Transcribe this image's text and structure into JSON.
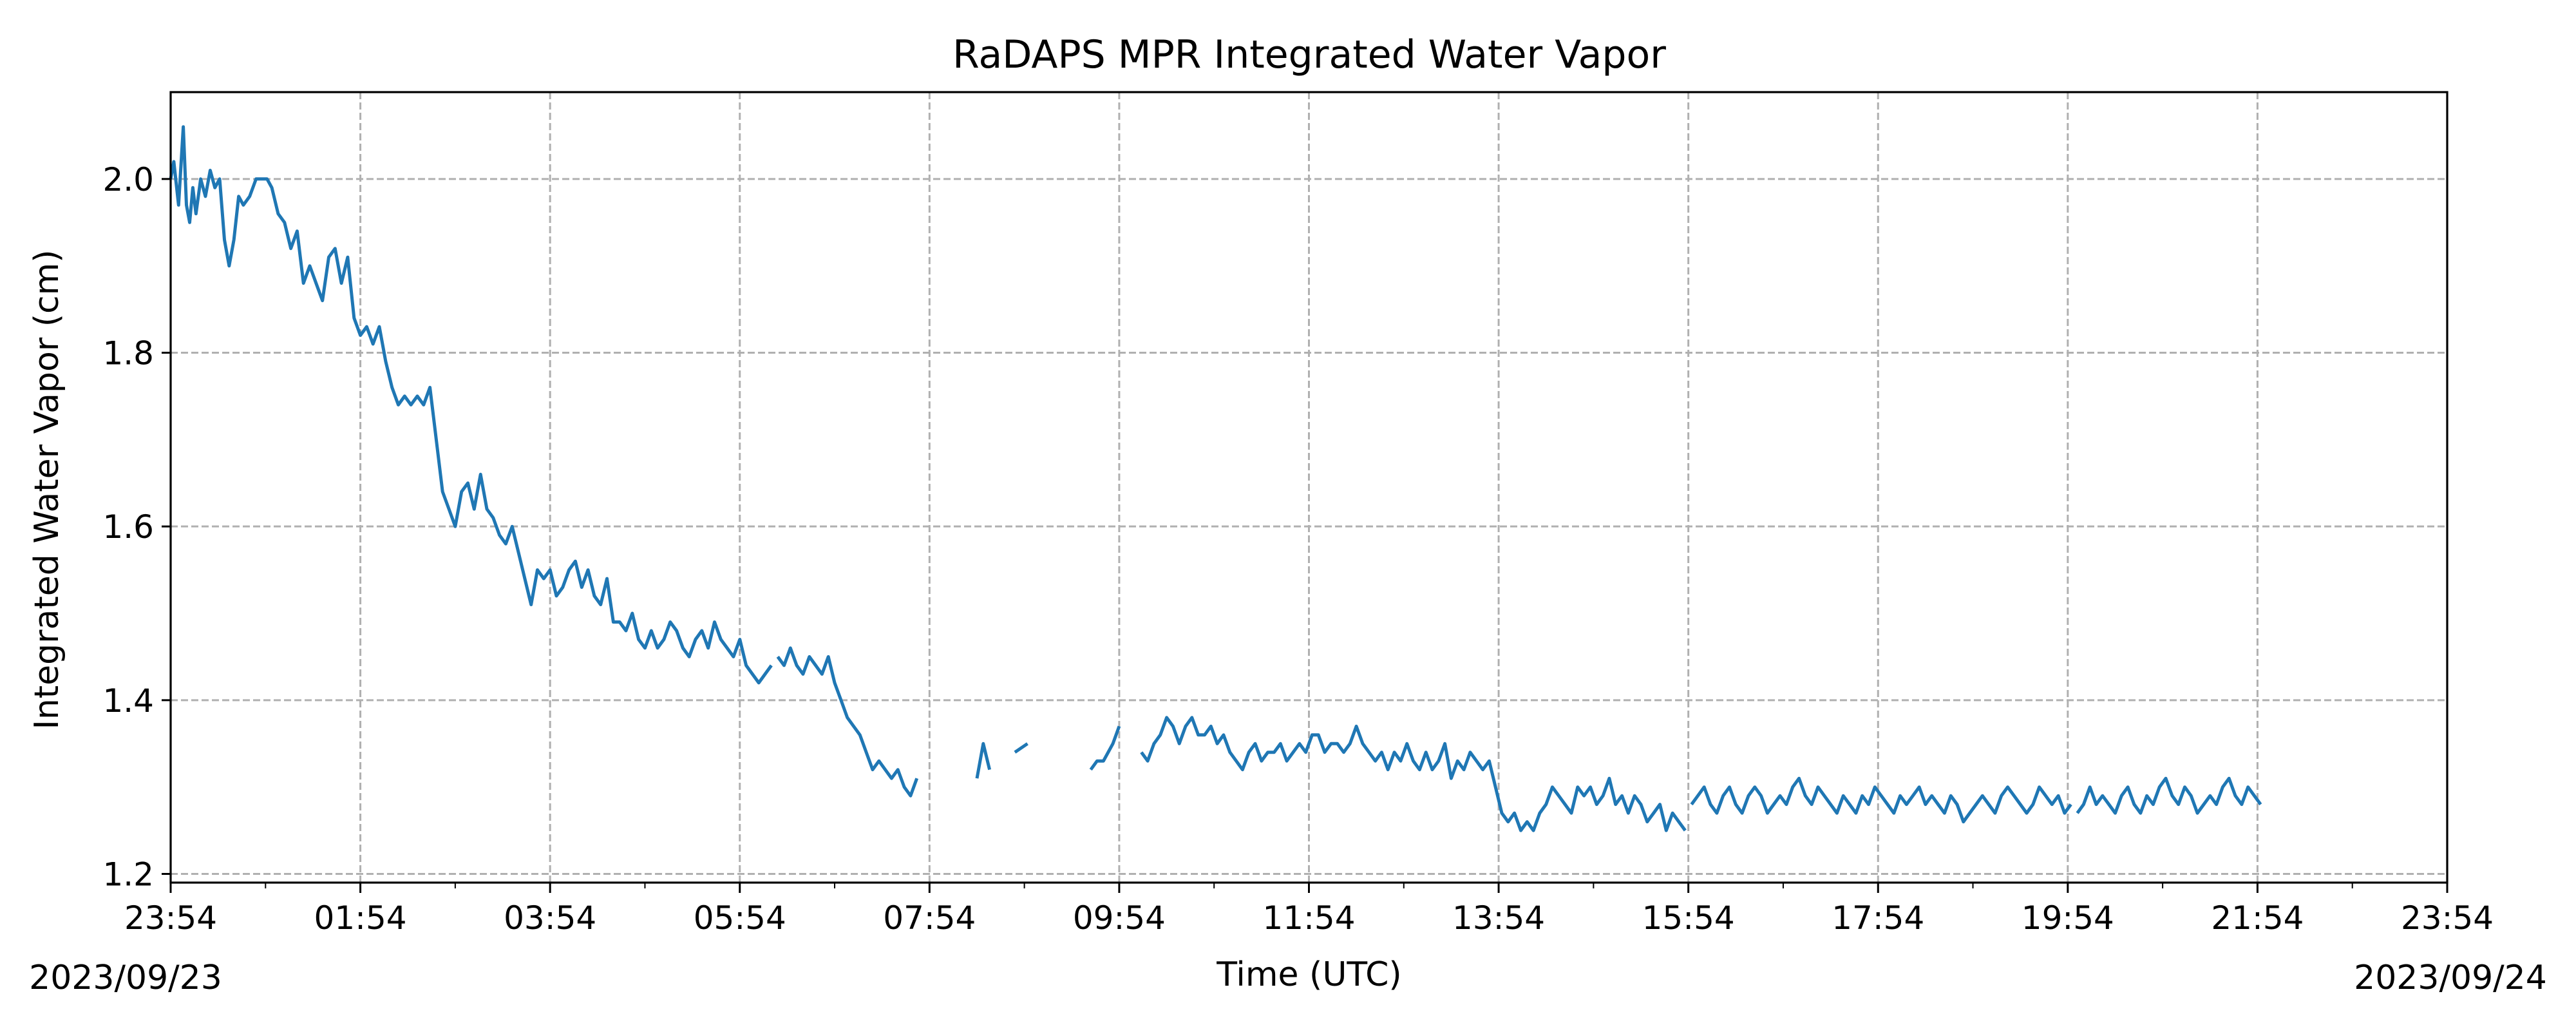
{
  "chart_data": {
    "type": "line",
    "title": "RaDAPS MPR Integrated Water Vapor",
    "xlabel": "Time (UTC)",
    "ylabel": "Integrated Water Vapor (cm)",
    "xlim": [
      "2023-09-23 23:54",
      "2023-09-24 23:54"
    ],
    "ylim": [
      1.19,
      2.1
    ],
    "x_ticks": [
      "23:54",
      "01:54",
      "03:54",
      "05:54",
      "07:54",
      "09:54",
      "11:54",
      "13:54",
      "15:54",
      "17:54",
      "19:54",
      "21:54",
      "23:54"
    ],
    "y_ticks": [
      "1.2",
      "1.4",
      "1.6",
      "1.8",
      "2.0"
    ],
    "date_start_label": "2023/09/23",
    "date_end_label": "2023/09/24",
    "grid": true,
    "line_color": "#1f77b4",
    "series": [
      {
        "segments": [
          {
            "x": [
              "2023-09-23 23:54",
              "2023-09-23 23:56",
              "2023-09-23 23:59",
              "2023-09-24 00:02",
              "2023-09-24 00:04",
              "2023-09-24 00:06",
              "2023-09-24 00:08",
              "2023-09-24 00:10",
              "2023-09-24 00:13",
              "2023-09-24 00:16",
              "2023-09-24 00:19",
              "2023-09-24 00:22",
              "2023-09-24 00:25",
              "2023-09-24 00:28",
              "2023-09-24 00:31",
              "2023-09-24 00:34",
              "2023-09-24 00:37",
              "2023-09-24 00:40",
              "2023-09-24 00:44",
              "2023-09-24 00:48",
              "2023-09-24 00:52",
              "2023-09-24 00:55",
              "2023-09-24 00:58",
              "2023-09-24 01:02",
              "2023-09-24 01:06",
              "2023-09-24 01:10",
              "2023-09-24 01:14",
              "2023-09-24 01:18",
              "2023-09-24 01:22",
              "2023-09-24 01:26",
              "2023-09-24 01:30",
              "2023-09-24 01:34",
              "2023-09-24 01:38",
              "2023-09-24 01:42",
              "2023-09-24 01:46",
              "2023-09-24 01:50",
              "2023-09-24 01:54",
              "2023-09-24 01:58",
              "2023-09-24 02:02",
              "2023-09-24 02:06",
              "2023-09-24 02:10",
              "2023-09-24 02:14",
              "2023-09-24 02:18",
              "2023-09-24 02:22",
              "2023-09-24 02:26",
              "2023-09-24 02:30",
              "2023-09-24 02:34",
              "2023-09-24 02:38",
              "2023-09-24 02:42",
              "2023-09-24 02:46",
              "2023-09-24 02:50",
              "2023-09-24 02:54",
              "2023-09-24 02:58",
              "2023-09-24 03:02",
              "2023-09-24 03:06",
              "2023-09-24 03:10",
              "2023-09-24 03:14",
              "2023-09-24 03:18",
              "2023-09-24 03:22",
              "2023-09-24 03:26",
              "2023-09-24 03:30",
              "2023-09-24 03:34",
              "2023-09-24 03:38",
              "2023-09-24 03:42",
              "2023-09-24 03:46",
              "2023-09-24 03:50",
              "2023-09-24 03:54",
              "2023-09-24 03:58",
              "2023-09-24 04:02",
              "2023-09-24 04:06",
              "2023-09-24 04:10",
              "2023-09-24 04:14",
              "2023-09-24 04:18",
              "2023-09-24 04:22",
              "2023-09-24 04:26",
              "2023-09-24 04:30",
              "2023-09-24 04:34",
              "2023-09-24 04:38",
              "2023-09-24 04:42",
              "2023-09-24 04:46",
              "2023-09-24 04:50",
              "2023-09-24 04:54",
              "2023-09-24 04:58",
              "2023-09-24 05:02",
              "2023-09-24 05:06",
              "2023-09-24 05:10",
              "2023-09-24 05:14",
              "2023-09-24 05:18",
              "2023-09-24 05:22",
              "2023-09-24 05:26",
              "2023-09-24 05:30",
              "2023-09-24 05:34",
              "2023-09-24 05:38",
              "2023-09-24 05:42",
              "2023-09-24 05:46",
              "2023-09-24 05:50",
              "2023-09-24 05:54",
              "2023-09-24 05:58",
              "2023-09-24 06:02",
              "2023-09-24 06:06",
              "2023-09-24 06:10",
              "2023-09-24 06:14"
            ],
            "y": [
              2.0,
              2.02,
              1.97,
              2.06,
              1.97,
              1.95,
              1.99,
              1.96,
              2.0,
              1.98,
              2.01,
              1.99,
              2.0,
              1.93,
              1.9,
              1.93,
              1.98,
              1.97,
              1.98,
              2.0,
              2.0,
              2.0,
              1.99,
              1.96,
              1.95,
              1.92,
              1.94,
              1.88,
              1.9,
              1.88,
              1.86,
              1.91,
              1.92,
              1.88,
              1.91,
              1.84,
              1.82,
              1.83,
              1.81,
              1.83,
              1.79,
              1.76,
              1.74,
              1.75,
              1.74,
              1.75,
              1.74,
              1.76,
              1.7,
              1.64,
              1.62,
              1.6,
              1.64,
              1.65,
              1.62,
              1.66,
              1.62,
              1.61,
              1.59,
              1.58,
              1.6,
              1.57,
              1.54,
              1.51,
              1.55,
              1.54,
              1.55,
              1.52,
              1.53,
              1.55,
              1.56,
              1.53,
              1.55,
              1.52,
              1.51,
              1.54,
              1.49,
              1.49,
              1.48,
              1.5,
              1.47,
              1.46,
              1.48,
              1.46,
              1.47,
              1.49,
              1.48,
              1.46,
              1.45,
              1.47,
              1.48,
              1.46,
              1.49,
              1.47,
              1.46,
              1.45,
              1.47,
              1.44,
              1.43,
              1.42,
              1.43,
              1.44
            ]
          },
          {
            "x": [
              "2023-09-24 06:18",
              "2023-09-24 06:22",
              "2023-09-24 06:26",
              "2023-09-24 06:30",
              "2023-09-24 06:34",
              "2023-09-24 06:38",
              "2023-09-24 06:42",
              "2023-09-24 06:46",
              "2023-09-24 06:50",
              "2023-09-24 06:54",
              "2023-09-24 06:58",
              "2023-09-24 07:02",
              "2023-09-24 07:06",
              "2023-09-24 07:10",
              "2023-09-24 07:14",
              "2023-09-24 07:18",
              "2023-09-24 07:22",
              "2023-09-24 07:26",
              "2023-09-24 07:30",
              "2023-09-24 07:34",
              "2023-09-24 07:38",
              "2023-09-24 07:42",
              "2023-09-24 07:46"
            ],
            "y": [
              1.45,
              1.44,
              1.46,
              1.44,
              1.43,
              1.45,
              1.44,
              1.43,
              1.45,
              1.42,
              1.4,
              1.38,
              1.37,
              1.36,
              1.34,
              1.32,
              1.33,
              1.32,
              1.31,
              1.32,
              1.3,
              1.29,
              1.31
            ]
          },
          {
            "x": [
              "2023-09-24 08:24",
              "2023-09-24 08:28",
              "2023-09-24 08:32"
            ],
            "y": [
              1.31,
              1.35,
              1.32
            ]
          },
          {
            "x": [
              "2023-09-24 08:48",
              "2023-09-24 08:56"
            ],
            "y": [
              1.34,
              1.35
            ]
          },
          {
            "x": [
              "2023-09-24 09:36",
              "2023-09-24 09:40",
              "2023-09-24 09:44",
              "2023-09-24 09:50",
              "2023-09-24 09:54"
            ],
            "y": [
              1.32,
              1.33,
              1.33,
              1.35,
              1.37
            ]
          },
          {
            "x": [
              "2023-09-24 10:08",
              "2023-09-24 10:12",
              "2023-09-24 10:16",
              "2023-09-24 10:20",
              "2023-09-24 10:24",
              "2023-09-24 10:28",
              "2023-09-24 10:32",
              "2023-09-24 10:36",
              "2023-09-24 10:40",
              "2023-09-24 10:44",
              "2023-09-24 10:48",
              "2023-09-24 10:52",
              "2023-09-24 10:56",
              "2023-09-24 11:00",
              "2023-09-24 11:04",
              "2023-09-24 11:08",
              "2023-09-24 11:12",
              "2023-09-24 11:16",
              "2023-09-24 11:20",
              "2023-09-24 11:24",
              "2023-09-24 11:28",
              "2023-09-24 11:32",
              "2023-09-24 11:36",
              "2023-09-24 11:40",
              "2023-09-24 11:44",
              "2023-09-24 11:48",
              "2023-09-24 11:52",
              "2023-09-24 11:56",
              "2023-09-24 12:00",
              "2023-09-24 12:04",
              "2023-09-24 12:08",
              "2023-09-24 12:12",
              "2023-09-24 12:16",
              "2023-09-24 12:20",
              "2023-09-24 12:24",
              "2023-09-24 12:28",
              "2023-09-24 12:32",
              "2023-09-24 12:36",
              "2023-09-24 12:40",
              "2023-09-24 12:44",
              "2023-09-24 12:48",
              "2023-09-24 12:52",
              "2023-09-24 12:56",
              "2023-09-24 13:00",
              "2023-09-24 13:04",
              "2023-09-24 13:08",
              "2023-09-24 13:12",
              "2023-09-24 13:16",
              "2023-09-24 13:20",
              "2023-09-24 13:24",
              "2023-09-24 13:28",
              "2023-09-24 13:32",
              "2023-09-24 13:36",
              "2023-09-24 13:40",
              "2023-09-24 13:44",
              "2023-09-24 13:48",
              "2023-09-24 13:52",
              "2023-09-24 13:56",
              "2023-09-24 14:00",
              "2023-09-24 14:04",
              "2023-09-24 14:08",
              "2023-09-24 14:12",
              "2023-09-24 14:16",
              "2023-09-24 14:20",
              "2023-09-24 14:24",
              "2023-09-24 14:28",
              "2023-09-24 14:32",
              "2023-09-24 14:36",
              "2023-09-24 14:40",
              "2023-09-24 14:44",
              "2023-09-24 14:48",
              "2023-09-24 14:52",
              "2023-09-24 14:56",
              "2023-09-24 15:00",
              "2023-09-24 15:04",
              "2023-09-24 15:08",
              "2023-09-24 15:12",
              "2023-09-24 15:16",
              "2023-09-24 15:20",
              "2023-09-24 15:24",
              "2023-09-24 15:28",
              "2023-09-24 15:32",
              "2023-09-24 15:36",
              "2023-09-24 15:40",
              "2023-09-24 15:44",
              "2023-09-24 15:48",
              "2023-09-24 15:52"
            ],
            "y": [
              1.34,
              1.33,
              1.35,
              1.36,
              1.38,
              1.37,
              1.35,
              1.37,
              1.38,
              1.36,
              1.36,
              1.37,
              1.35,
              1.36,
              1.34,
              1.33,
              1.32,
              1.34,
              1.35,
              1.33,
              1.34,
              1.34,
              1.35,
              1.33,
              1.34,
              1.35,
              1.34,
              1.36,
              1.36,
              1.34,
              1.35,
              1.35,
              1.34,
              1.35,
              1.37,
              1.35,
              1.34,
              1.33,
              1.34,
              1.32,
              1.34,
              1.33,
              1.35,
              1.33,
              1.32,
              1.34,
              1.32,
              1.33,
              1.35,
              1.31,
              1.33,
              1.32,
              1.34,
              1.33,
              1.32,
              1.33,
              1.3,
              1.27,
              1.26,
              1.27,
              1.25,
              1.26,
              1.25,
              1.27,
              1.28,
              1.3,
              1.29,
              1.28,
              1.27,
              1.3,
              1.29,
              1.3,
              1.28,
              1.29,
              1.31,
              1.28,
              1.29,
              1.27,
              1.29,
              1.28,
              1.26,
              1.27,
              1.28,
              1.25,
              1.27,
              1.26,
              1.25
            ]
          },
          {
            "x": [
              "2023-09-24 15:56",
              "2023-09-24 16:00",
              "2023-09-24 16:04",
              "2023-09-24 16:08",
              "2023-09-24 16:12",
              "2023-09-24 16:16",
              "2023-09-24 16:20",
              "2023-09-24 16:24",
              "2023-09-24 16:28",
              "2023-09-24 16:32",
              "2023-09-24 16:36",
              "2023-09-24 16:40",
              "2023-09-24 16:44",
              "2023-09-24 16:48",
              "2023-09-24 16:52",
              "2023-09-24 16:56",
              "2023-09-24 17:00",
              "2023-09-24 17:04",
              "2023-09-24 17:08",
              "2023-09-24 17:12",
              "2023-09-24 17:16",
              "2023-09-24 17:20",
              "2023-09-24 17:24",
              "2023-09-24 17:28",
              "2023-09-24 17:32",
              "2023-09-24 17:36",
              "2023-09-24 17:40",
              "2023-09-24 17:44",
              "2023-09-24 17:48",
              "2023-09-24 17:52",
              "2023-09-24 17:56",
              "2023-09-24 18:00",
              "2023-09-24 18:04",
              "2023-09-24 18:08",
              "2023-09-24 18:12",
              "2023-09-24 18:16",
              "2023-09-24 18:20",
              "2023-09-24 18:24",
              "2023-09-24 18:28",
              "2023-09-24 18:32",
              "2023-09-24 18:36",
              "2023-09-24 18:40",
              "2023-09-24 18:44",
              "2023-09-24 18:48",
              "2023-09-24 18:52",
              "2023-09-24 18:56",
              "2023-09-24 19:00",
              "2023-09-24 19:04",
              "2023-09-24 19:08",
              "2023-09-24 19:12",
              "2023-09-24 19:16",
              "2023-09-24 19:20",
              "2023-09-24 19:24",
              "2023-09-24 19:28",
              "2023-09-24 19:32",
              "2023-09-24 19:36",
              "2023-09-24 19:40",
              "2023-09-24 19:44",
              "2023-09-24 19:48",
              "2023-09-24 19:52",
              "2023-09-24 19:56"
            ],
            "y": [
              1.28,
              1.29,
              1.3,
              1.28,
              1.27,
              1.29,
              1.3,
              1.28,
              1.27,
              1.29,
              1.3,
              1.29,
              1.27,
              1.28,
              1.29,
              1.28,
              1.3,
              1.31,
              1.29,
              1.28,
              1.3,
              1.29,
              1.28,
              1.27,
              1.29,
              1.28,
              1.27,
              1.29,
              1.28,
              1.3,
              1.29,
              1.28,
              1.27,
              1.29,
              1.28,
              1.29,
              1.3,
              1.28,
              1.29,
              1.28,
              1.27,
              1.29,
              1.28,
              1.26,
              1.27,
              1.28,
              1.29,
              1.28,
              1.27,
              1.29,
              1.3,
              1.29,
              1.28,
              1.27,
              1.28,
              1.3,
              1.29,
              1.28,
              1.29,
              1.27,
              1.28
            ]
          },
          {
            "x": [
              "2023-09-24 20:00",
              "2023-09-24 20:04",
              "2023-09-24 20:08",
              "2023-09-24 20:12",
              "2023-09-24 20:16",
              "2023-09-24 20:20",
              "2023-09-24 20:24",
              "2023-09-24 20:28",
              "2023-09-24 20:32",
              "2023-09-24 20:36",
              "2023-09-24 20:40",
              "2023-09-24 20:44",
              "2023-09-24 20:48",
              "2023-09-24 20:52",
              "2023-09-24 20:56",
              "2023-09-24 21:00",
              "2023-09-24 21:04",
              "2023-09-24 21:08",
              "2023-09-24 21:12",
              "2023-09-24 21:16",
              "2023-09-24 21:20",
              "2023-09-24 21:24",
              "2023-09-24 21:28",
              "2023-09-24 21:32",
              "2023-09-24 21:36",
              "2023-09-24 21:40",
              "2023-09-24 21:44",
              "2023-09-24 21:48",
              "2023-09-24 21:52",
              "2023-09-24 21:56"
            ],
            "y": [
              1.27,
              1.28,
              1.3,
              1.28,
              1.29,
              1.28,
              1.27,
              1.29,
              1.3,
              1.28,
              1.27,
              1.29,
              1.28,
              1.3,
              1.31,
              1.29,
              1.28,
              1.3,
              1.29,
              1.27,
              1.28,
              1.29,
              1.28,
              1.3,
              1.31,
              1.29,
              1.28,
              1.3,
              1.29,
              1.28
            ]
          }
        ]
      }
    ]
  }
}
